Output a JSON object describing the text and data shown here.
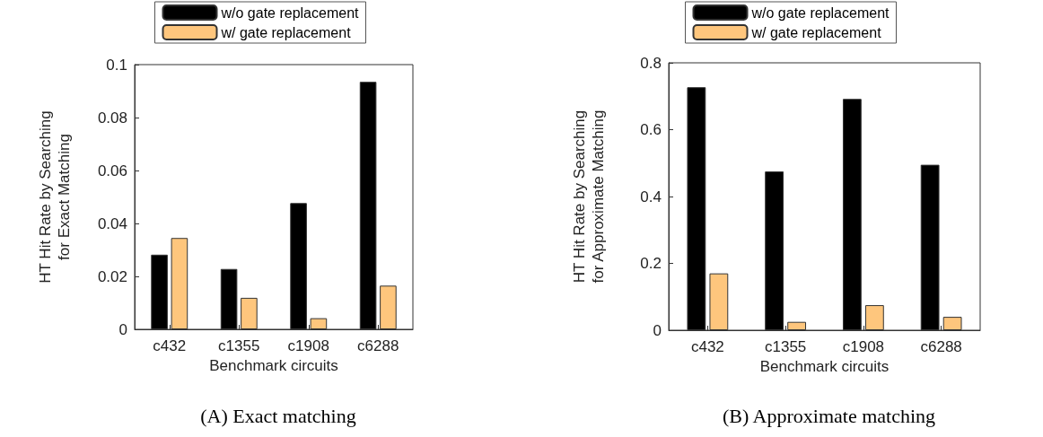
{
  "chart_data": [
    {
      "type": "bar",
      "title": "(A) Exact matching",
      "xlabel": "Benchmark circuits",
      "ylabel": "HT Hit Rate by Searching\nfor Exact Matching",
      "categories": [
        "c432",
        "c1355",
        "c1908",
        "c6288"
      ],
      "series": [
        {
          "name": "w/o gate replacement",
          "color": "#000000",
          "values": [
            0.0282,
            0.0228,
            0.0477,
            0.0935
          ]
        },
        {
          "name": "w/ gate replacement",
          "color": "#fec67d",
          "values": [
            0.0345,
            0.0119,
            0.0042,
            0.0165
          ]
        }
      ],
      "ylim": [
        0,
        0.1
      ],
      "yticks": [
        0,
        0.02,
        0.04,
        0.06,
        0.08,
        0.1
      ],
      "legend": "top",
      "grid": false
    },
    {
      "type": "bar",
      "title": "(B) Approximate matching",
      "xlabel": "Benchmark circuits",
      "ylabel": "HT Hit Rate by Searching\nfor Approximate Matching",
      "categories": [
        "c432",
        "c1355",
        "c1908",
        "c6288"
      ],
      "series": [
        {
          "name": "w/o gate replacement",
          "color": "#000000",
          "values": [
            0.727,
            0.475,
            0.692,
            0.495
          ]
        },
        {
          "name": "w/ gate replacement",
          "color": "#fec67d",
          "values": [
            0.17,
            0.025,
            0.075,
            0.04
          ]
        }
      ],
      "ylim": [
        0,
        0.8
      ],
      "yticks": [
        0,
        0.2,
        0.4,
        0.6,
        0.8
      ],
      "legend": "top",
      "grid": false
    }
  ]
}
